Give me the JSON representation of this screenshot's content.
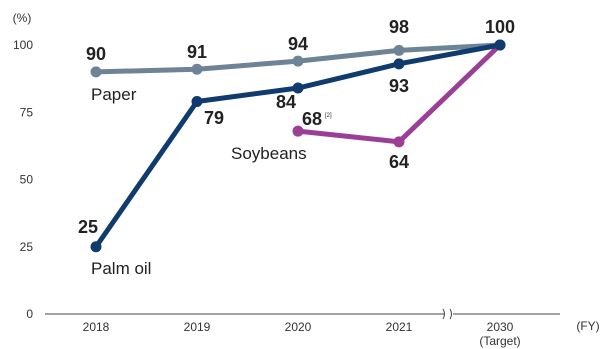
{
  "chart_data": {
    "type": "line",
    "y_unit": "(%)",
    "x_unit": "(FY)",
    "categories": [
      "2018",
      "2019",
      "2020",
      "2021",
      "2030"
    ],
    "category_sublabels": [
      "",
      "",
      "",
      "",
      "(Target)"
    ],
    "ylim": [
      0,
      100
    ],
    "yticks": [
      0,
      25,
      50,
      75,
      100
    ],
    "axis_break": "between 2021 and 2030",
    "grid": false,
    "series": [
      {
        "name": "Paper",
        "color": "#6f8396",
        "values": [
          90,
          91,
          94,
          98,
          100
        ],
        "value_labels": [
          "90",
          "91",
          "94",
          "98",
          ""
        ]
      },
      {
        "name": "Palm oil",
        "color": "#0f3b6e",
        "values": [
          25,
          79,
          84,
          93,
          100
        ],
        "value_labels": [
          "25",
          "79",
          "84",
          "93",
          "100"
        ]
      },
      {
        "name": "Soybeans",
        "color": "#9b3f96",
        "values": [
          null,
          null,
          68,
          64,
          100
        ],
        "value_labels": [
          "",
          "",
          "68",
          "64",
          ""
        ],
        "notes": [
          "",
          "",
          "[2]",
          "",
          ""
        ]
      }
    ]
  }
}
